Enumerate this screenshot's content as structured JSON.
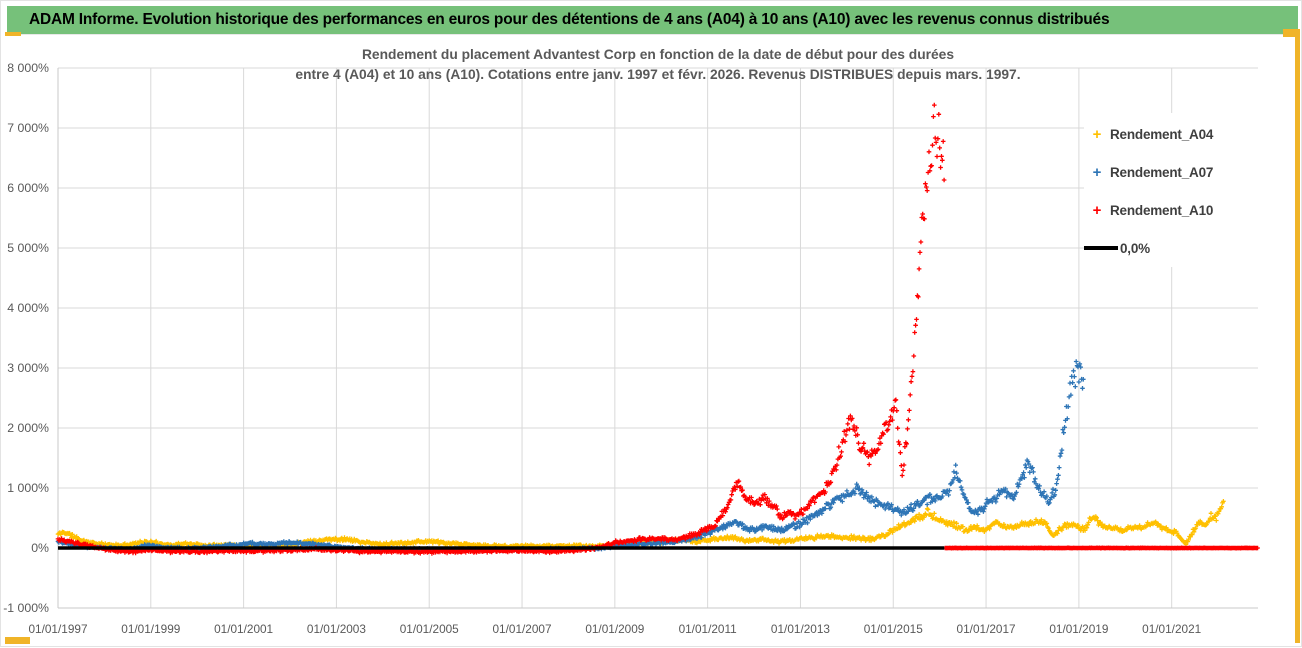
{
  "header": {
    "title": "ADAM Informe. Evolution historique des performances en euros pour des détentions de 4 ans (A04) à 10 ans (A10) avec les revenus connus distribués"
  },
  "chart": {
    "title_line1": "Rendement du placement Advantest Corp en fonction de la date de début pour des durées",
    "title_line2": "entre 4 (A04) et 10 ans (A10). Cotations entre janv. 1997 et févr. 2026. Revenus DISTRIBUES depuis mars. 1997.",
    "legend": [
      {
        "label": "Rendement_A04",
        "color": "#FFC000",
        "marker": "plus"
      },
      {
        "label": "Rendement_A07",
        "color": "#2E75B6",
        "marker": "plus"
      },
      {
        "label": "Rendement_A10",
        "color": "#FF0000",
        "marker": "plus"
      },
      {
        "label": "0,0%",
        "color": "#000000",
        "marker": "line"
      }
    ]
  },
  "chart_data": {
    "type": "scatter",
    "title": "Rendement du placement Advantest Corp en fonction de la date de début pour des durées entre 4 (A04) et 10 ans (A10). Cotations entre janv. 1997 et févr. 2026. Revenus DISTRIBUES depuis mars. 1997.",
    "x_axis": {
      "type": "date",
      "domain_years": [
        1997.0,
        2022.86
      ],
      "tick_labels": [
        "01/01/1997",
        "01/01/1999",
        "01/01/2001",
        "01/01/2003",
        "01/01/2005",
        "01/01/2007",
        "01/01/2009",
        "01/01/2011",
        "01/01/2013",
        "01/01/2015",
        "01/01/2017",
        "01/01/2019",
        "01/01/2021"
      ],
      "tick_years": [
        1997,
        1999,
        2001,
        2003,
        2005,
        2007,
        2009,
        2011,
        2013,
        2015,
        2017,
        2019,
        2021
      ],
      "gridline_years": [
        1999,
        2001,
        2003,
        2005,
        2007,
        2009,
        2011,
        2013,
        2015,
        2017,
        2019,
        2021
      ]
    },
    "y_axis": {
      "min": -1000,
      "max": 8000,
      "step": 1000,
      "unit": "%",
      "tick_labels": [
        "8 000%",
        "7 000%",
        "6 000%",
        "5 000%",
        "4 000%",
        "3 000%",
        "2 000%",
        "1 000%",
        "0%",
        "-1 000%"
      ]
    },
    "grid": true,
    "legend_position": "right-top-overlay",
    "series": [
      {
        "name": "Rendement_A04",
        "color": "#FFC000",
        "marker": "plus",
        "seed": 11,
        "anchors": [
          [
            1997.0,
            230
          ],
          [
            1997.15,
            265
          ],
          [
            1997.3,
            200
          ],
          [
            1997.5,
            130
          ],
          [
            1997.7,
            90
          ],
          [
            1998.0,
            55
          ],
          [
            1998.4,
            40
          ],
          [
            1998.8,
            100
          ],
          [
            1999.1,
            85
          ],
          [
            1999.4,
            50
          ],
          [
            1999.8,
            70
          ],
          [
            2000.2,
            40
          ],
          [
            2000.6,
            60
          ],
          [
            2001.0,
            30
          ],
          [
            2001.5,
            20
          ],
          [
            2002.0,
            60
          ],
          [
            2002.4,
            110
          ],
          [
            2002.8,
            140
          ],
          [
            2003.2,
            150
          ],
          [
            2003.6,
            90
          ],
          [
            2004.0,
            60
          ],
          [
            2004.6,
            95
          ],
          [
            2005.0,
            115
          ],
          [
            2005.4,
            75
          ],
          [
            2005.8,
            55
          ],
          [
            2006.3,
            35
          ],
          [
            2007.0,
            30
          ],
          [
            2008.0,
            35
          ],
          [
            2008.6,
            28
          ],
          [
            2009.0,
            50
          ],
          [
            2009.5,
            80
          ],
          [
            2010.0,
            100
          ],
          [
            2010.4,
            145
          ],
          [
            2010.7,
            100
          ],
          [
            2011.0,
            130
          ],
          [
            2011.5,
            180
          ],
          [
            2011.8,
            120
          ],
          [
            2012.2,
            150
          ],
          [
            2012.5,
            100
          ],
          [
            2013.0,
            150
          ],
          [
            2013.5,
            195
          ],
          [
            2014.0,
            175
          ],
          [
            2014.5,
            150
          ],
          [
            2014.8,
            200
          ],
          [
            2015.0,
            300
          ],
          [
            2015.3,
            400
          ],
          [
            2015.55,
            520
          ],
          [
            2015.75,
            600
          ],
          [
            2015.95,
            480
          ],
          [
            2016.15,
            420
          ],
          [
            2016.35,
            370
          ],
          [
            2016.55,
            300
          ],
          [
            2016.75,
            345
          ],
          [
            2016.95,
            280
          ],
          [
            2017.2,
            415
          ],
          [
            2017.5,
            345
          ],
          [
            2017.8,
            395
          ],
          [
            2018.05,
            420
          ],
          [
            2018.25,
            450
          ],
          [
            2018.45,
            210
          ],
          [
            2018.7,
            380
          ],
          [
            2018.9,
            395
          ],
          [
            2019.1,
            300
          ],
          [
            2019.3,
            520
          ],
          [
            2019.55,
            340
          ],
          [
            2019.9,
            295
          ],
          [
            2020.1,
            345
          ],
          [
            2020.35,
            330
          ],
          [
            2020.6,
            430
          ],
          [
            2020.9,
            300
          ],
          [
            2021.1,
            250
          ],
          [
            2021.3,
            60
          ],
          [
            2021.45,
            260
          ],
          [
            2021.6,
            430
          ],
          [
            2021.72,
            360
          ],
          [
            2021.85,
            550
          ],
          [
            2021.95,
            470
          ],
          [
            2022.05,
            680
          ],
          [
            2022.12,
            760
          ]
        ]
      },
      {
        "name": "Rendement_A07",
        "color": "#2E75B6",
        "marker": "plus",
        "seed": 22,
        "anchors": [
          [
            1997.0,
            115
          ],
          [
            1997.3,
            70
          ],
          [
            1997.6,
            25
          ],
          [
            1998.0,
            0
          ],
          [
            1998.5,
            -20
          ],
          [
            1998.9,
            40
          ],
          [
            1999.3,
            10
          ],
          [
            1999.8,
            -10
          ],
          [
            2000.3,
            15
          ],
          [
            2000.8,
            50
          ],
          [
            2001.2,
            80
          ],
          [
            2001.6,
            60
          ],
          [
            2002.0,
            90
          ],
          [
            2002.4,
            70
          ],
          [
            2002.8,
            40
          ],
          [
            2003.2,
            0
          ],
          [
            2003.8,
            -20
          ],
          [
            2004.5,
            -25
          ],
          [
            2005.2,
            -30
          ],
          [
            2006.0,
            -30
          ],
          [
            2007.0,
            -20
          ],
          [
            2008.0,
            -20
          ],
          [
            2008.6,
            -5
          ],
          [
            2009.0,
            30
          ],
          [
            2009.5,
            60
          ],
          [
            2010.0,
            90
          ],
          [
            2010.5,
            120
          ],
          [
            2011.0,
            250
          ],
          [
            2011.3,
            350
          ],
          [
            2011.6,
            420
          ],
          [
            2011.9,
            300
          ],
          [
            2012.3,
            350
          ],
          [
            2012.6,
            300
          ],
          [
            2013.0,
            400
          ],
          [
            2013.4,
            600
          ],
          [
            2013.8,
            800
          ],
          [
            2014.05,
            900
          ],
          [
            2014.25,
            980
          ],
          [
            2014.5,
            800
          ],
          [
            2014.75,
            730
          ],
          [
            2014.95,
            660
          ],
          [
            2015.2,
            600
          ],
          [
            2015.5,
            720
          ],
          [
            2015.8,
            820
          ],
          [
            2016.0,
            870
          ],
          [
            2016.2,
            950
          ],
          [
            2016.35,
            1300
          ],
          [
            2016.5,
            950
          ],
          [
            2016.7,
            550
          ],
          [
            2016.9,
            650
          ],
          [
            2017.1,
            800
          ],
          [
            2017.4,
            950
          ],
          [
            2017.6,
            850
          ],
          [
            2017.9,
            1400
          ],
          [
            2018.1,
            1100
          ],
          [
            2018.35,
            750
          ],
          [
            2018.5,
            1000
          ],
          [
            2018.65,
            1800
          ],
          [
            2018.8,
            2600
          ],
          [
            2018.95,
            2980
          ],
          [
            2019.1,
            2750
          ]
        ]
      },
      {
        "name": "Rendement_A10",
        "color": "#FF0000",
        "marker": "plus",
        "seed": 33,
        "zero_tail": [
          2016.12,
          2022.86
        ],
        "anchors": [
          [
            1997.0,
            140
          ],
          [
            1997.2,
            110
          ],
          [
            1997.5,
            60
          ],
          [
            1997.8,
            10
          ],
          [
            1998.2,
            -40
          ],
          [
            1998.6,
            -60
          ],
          [
            1999.0,
            -30
          ],
          [
            1999.5,
            -60
          ],
          [
            2000.0,
            -60
          ],
          [
            2000.5,
            -50
          ],
          [
            2001.0,
            -55
          ],
          [
            2001.5,
            -45
          ],
          [
            2002.0,
            -40
          ],
          [
            2002.5,
            -15
          ],
          [
            2003.0,
            -35
          ],
          [
            2003.5,
            -55
          ],
          [
            2004.0,
            -60
          ],
          [
            2005.0,
            -60
          ],
          [
            2006.0,
            -50
          ],
          [
            2007.0,
            -45
          ],
          [
            2007.6,
            -60
          ],
          [
            2008.2,
            -35
          ],
          [
            2008.6,
            0
          ],
          [
            2009.0,
            90
          ],
          [
            2009.5,
            140
          ],
          [
            2010.0,
            160
          ],
          [
            2010.3,
            130
          ],
          [
            2010.8,
            250
          ],
          [
            2011.1,
            350
          ],
          [
            2011.35,
            600
          ],
          [
            2011.5,
            800
          ],
          [
            2011.65,
            1130
          ],
          [
            2011.8,
            900
          ],
          [
            2012.0,
            700
          ],
          [
            2012.2,
            840
          ],
          [
            2012.45,
            690
          ],
          [
            2012.6,
            500
          ],
          [
            2012.75,
            600
          ],
          [
            2012.9,
            520
          ],
          [
            2013.1,
            650
          ],
          [
            2013.3,
            800
          ],
          [
            2013.5,
            950
          ],
          [
            2013.65,
            1150
          ],
          [
            2013.8,
            1500
          ],
          [
            2013.95,
            1850
          ],
          [
            2014.1,
            2200
          ],
          [
            2014.3,
            1700
          ],
          [
            2014.5,
            1500
          ],
          [
            2014.7,
            1750
          ],
          [
            2014.9,
            2050
          ],
          [
            2015.05,
            2400
          ],
          [
            2015.2,
            1200
          ],
          [
            2015.35,
            2300
          ],
          [
            2015.45,
            3300
          ],
          [
            2015.6,
            5100
          ],
          [
            2015.77,
            6300
          ],
          [
            2015.92,
            7000
          ],
          [
            2016.0,
            6700
          ],
          [
            2016.1,
            6300
          ]
        ]
      },
      {
        "name": "0,0%",
        "color": "#000000",
        "type": "line",
        "value": 0,
        "span": [
          1997.0,
          2016.1
        ]
      }
    ]
  },
  "colors": {
    "header_green": "#76C17A",
    "accent_orange": "#F0B428",
    "gridline": "#D9D9D9",
    "axis_line": "#C9C9C9",
    "axis_text": "#595959",
    "title_text": "#595959",
    "legend_text": "#3F3F3F"
  }
}
